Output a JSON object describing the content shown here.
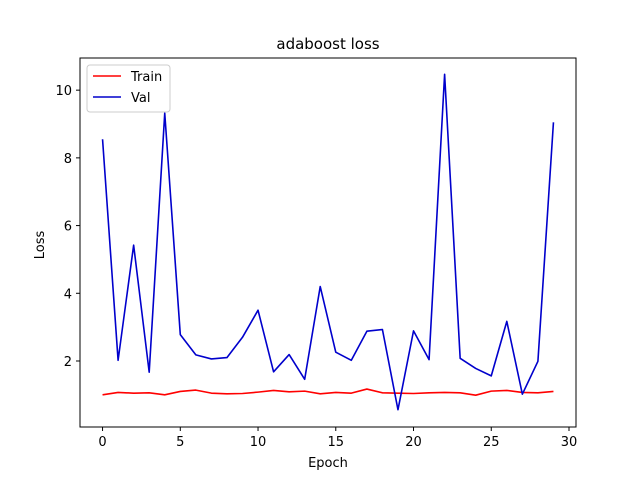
{
  "chart_data": {
    "type": "line",
    "title": "adaboost loss",
    "xlabel": "Epoch",
    "ylabel": "Loss",
    "xlim": [
      -1.45,
      30.45
    ],
    "ylim": [
      0.05,
      10.95
    ],
    "xticks": [
      0,
      5,
      10,
      15,
      20,
      25,
      30
    ],
    "yticks": [
      2,
      4,
      6,
      8,
      10
    ],
    "grid": false,
    "legend_placement": "top-left",
    "x": [
      0,
      1,
      2,
      3,
      4,
      5,
      6,
      7,
      8,
      9,
      10,
      11,
      12,
      13,
      14,
      15,
      16,
      17,
      18,
      19,
      20,
      21,
      22,
      23,
      24,
      25,
      26,
      27,
      28,
      29
    ],
    "series": [
      {
        "name": "Train",
        "color": "#ff0000",
        "values": [
          1.0,
          1.07,
          1.05,
          1.06,
          1.0,
          1.1,
          1.14,
          1.05,
          1.03,
          1.04,
          1.08,
          1.13,
          1.09,
          1.11,
          1.03,
          1.07,
          1.05,
          1.17,
          1.06,
          1.05,
          1.04,
          1.06,
          1.07,
          1.06,
          0.99,
          1.11,
          1.13,
          1.07,
          1.06,
          1.1
        ]
      },
      {
        "name": "Val",
        "color": "#0000cc",
        "values": [
          8.55,
          2.02,
          5.42,
          1.67,
          9.32,
          2.78,
          2.18,
          2.06,
          2.1,
          2.7,
          3.5,
          1.68,
          2.19,
          1.46,
          4.2,
          2.26,
          2.02,
          2.88,
          2.93,
          0.56,
          2.89,
          2.04,
          10.47,
          2.08,
          1.78,
          1.56,
          3.17,
          1.02,
          1.99,
          9.05
        ]
      }
    ]
  }
}
